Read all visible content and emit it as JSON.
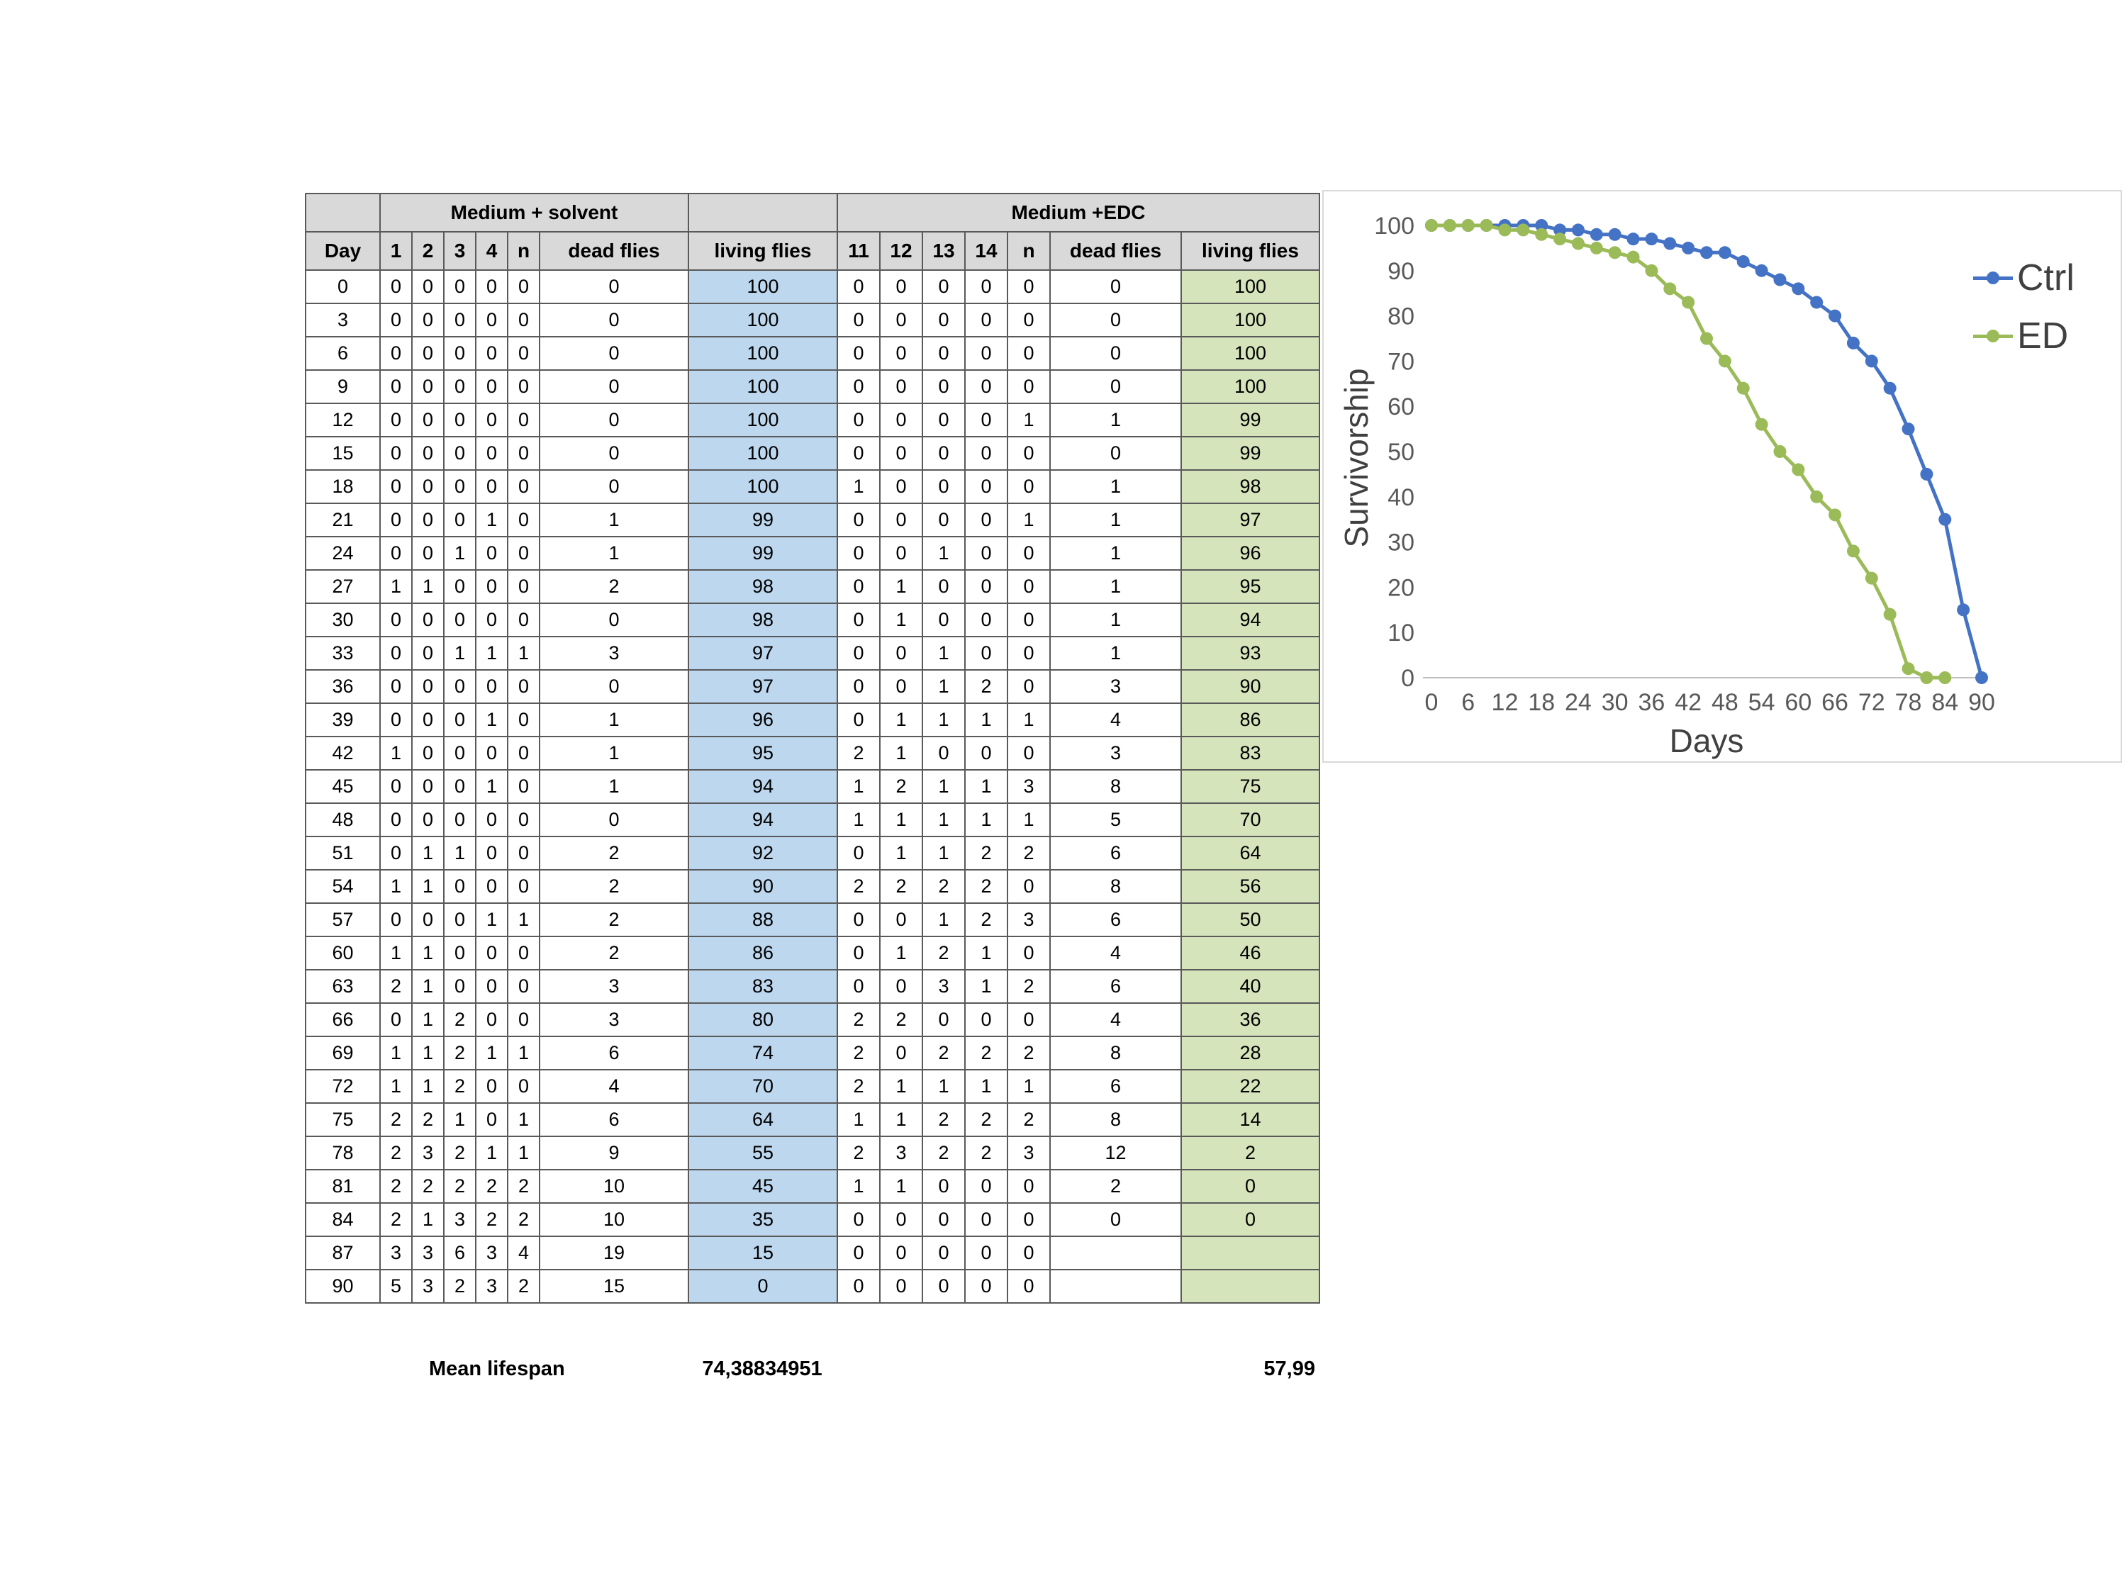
{
  "table": {
    "group_headers": [
      {
        "label": "",
        "span": 1
      },
      {
        "label": "Medium + solvent",
        "span": 6
      },
      {
        "label": "",
        "span": 1
      },
      {
        "label": "Medium +EDC",
        "span": 7
      }
    ],
    "columns": [
      "Day",
      "1",
      "2",
      "3",
      "4",
      "n",
      "dead flies",
      "living flies",
      "11",
      "12",
      "13",
      "14",
      "n",
      "dead flies",
      "living flies"
    ],
    "rows": [
      [
        "0",
        "0",
        "0",
        "0",
        "0",
        "0",
        "0",
        "100",
        "0",
        "0",
        "0",
        "0",
        "0",
        "0",
        "100"
      ],
      [
        "3",
        "0",
        "0",
        "0",
        "0",
        "0",
        "0",
        "100",
        "0",
        "0",
        "0",
        "0",
        "0",
        "0",
        "100"
      ],
      [
        "6",
        "0",
        "0",
        "0",
        "0",
        "0",
        "0",
        "100",
        "0",
        "0",
        "0",
        "0",
        "0",
        "0",
        "100"
      ],
      [
        "9",
        "0",
        "0",
        "0",
        "0",
        "0",
        "0",
        "100",
        "0",
        "0",
        "0",
        "0",
        "0",
        "0",
        "100"
      ],
      [
        "12",
        "0",
        "0",
        "0",
        "0",
        "0",
        "0",
        "100",
        "0",
        "0",
        "0",
        "0",
        "1",
        "1",
        "99"
      ],
      [
        "15",
        "0",
        "0",
        "0",
        "0",
        "0",
        "0",
        "100",
        "0",
        "0",
        "0",
        "0",
        "0",
        "0",
        "99"
      ],
      [
        "18",
        "0",
        "0",
        "0",
        "0",
        "0",
        "0",
        "100",
        "1",
        "0",
        "0",
        "0",
        "0",
        "1",
        "98"
      ],
      [
        "21",
        "0",
        "0",
        "0",
        "1",
        "0",
        "1",
        "99",
        "0",
        "0",
        "0",
        "0",
        "1",
        "1",
        "97"
      ],
      [
        "24",
        "0",
        "0",
        "1",
        "0",
        "0",
        "1",
        "99",
        "0",
        "0",
        "1",
        "0",
        "0",
        "1",
        "96"
      ],
      [
        "27",
        "1",
        "1",
        "0",
        "0",
        "0",
        "2",
        "98",
        "0",
        "1",
        "0",
        "0",
        "0",
        "1",
        "95"
      ],
      [
        "30",
        "0",
        "0",
        "0",
        "0",
        "0",
        "0",
        "98",
        "0",
        "1",
        "0",
        "0",
        "0",
        "1",
        "94"
      ],
      [
        "33",
        "0",
        "0",
        "1",
        "1",
        "1",
        "3",
        "97",
        "0",
        "0",
        "1",
        "0",
        "0",
        "1",
        "93"
      ],
      [
        "36",
        "0",
        "0",
        "0",
        "0",
        "0",
        "0",
        "97",
        "0",
        "0",
        "1",
        "2",
        "0",
        "3",
        "90"
      ],
      [
        "39",
        "0",
        "0",
        "0",
        "1",
        "0",
        "1",
        "96",
        "0",
        "1",
        "1",
        "1",
        "1",
        "4",
        "86"
      ],
      [
        "42",
        "1",
        "0",
        "0",
        "0",
        "0",
        "1",
        "95",
        "2",
        "1",
        "0",
        "0",
        "0",
        "3",
        "83"
      ],
      [
        "45",
        "0",
        "0",
        "0",
        "1",
        "0",
        "1",
        "94",
        "1",
        "2",
        "1",
        "1",
        "3",
        "8",
        "75"
      ],
      [
        "48",
        "0",
        "0",
        "0",
        "0",
        "0",
        "0",
        "94",
        "1",
        "1",
        "1",
        "1",
        "1",
        "5",
        "70"
      ],
      [
        "51",
        "0",
        "1",
        "1",
        "0",
        "0",
        "2",
        "92",
        "0",
        "1",
        "1",
        "2",
        "2",
        "6",
        "64"
      ],
      [
        "54",
        "1",
        "1",
        "0",
        "0",
        "0",
        "2",
        "90",
        "2",
        "2",
        "2",
        "2",
        "0",
        "8",
        "56"
      ],
      [
        "57",
        "0",
        "0",
        "0",
        "1",
        "1",
        "2",
        "88",
        "0",
        "0",
        "1",
        "2",
        "3",
        "6",
        "50"
      ],
      [
        "60",
        "1",
        "1",
        "0",
        "0",
        "0",
        "2",
        "86",
        "0",
        "1",
        "2",
        "1",
        "0",
        "4",
        "46"
      ],
      [
        "63",
        "2",
        "1",
        "0",
        "0",
        "0",
        "3",
        "83",
        "0",
        "0",
        "3",
        "1",
        "2",
        "6",
        "40"
      ],
      [
        "66",
        "0",
        "1",
        "2",
        "0",
        "0",
        "3",
        "80",
        "2",
        "2",
        "0",
        "0",
        "0",
        "4",
        "36"
      ],
      [
        "69",
        "1",
        "1",
        "2",
        "1",
        "1",
        "6",
        "74",
        "2",
        "0",
        "2",
        "2",
        "2",
        "8",
        "28"
      ],
      [
        "72",
        "1",
        "1",
        "2",
        "0",
        "0",
        "4",
        "70",
        "2",
        "1",
        "1",
        "1",
        "1",
        "6",
        "22"
      ],
      [
        "75",
        "2",
        "2",
        "1",
        "0",
        "1",
        "6",
        "64",
        "1",
        "1",
        "2",
        "2",
        "2",
        "8",
        "14"
      ],
      [
        "78",
        "2",
        "3",
        "2",
        "1",
        "1",
        "9",
        "55",
        "2",
        "3",
        "2",
        "2",
        "3",
        "12",
        "2"
      ],
      [
        "81",
        "2",
        "2",
        "2",
        "2",
        "2",
        "10",
        "45",
        "1",
        "1",
        "0",
        "0",
        "0",
        "2",
        "0"
      ],
      [
        "84",
        "2",
        "1",
        "3",
        "2",
        "2",
        "10",
        "35",
        "0",
        "0",
        "0",
        "0",
        "0",
        "0",
        "0"
      ],
      [
        "87",
        "3",
        "3",
        "6",
        "3",
        "4",
        "19",
        "15",
        "0",
        "0",
        "0",
        "0",
        "0",
        "",
        ""
      ],
      [
        "90",
        "5",
        "3",
        "2",
        "3",
        "2",
        "15",
        "0",
        "0",
        "0",
        "0",
        "0",
        "0",
        "",
        ""
      ]
    ],
    "footer": {
      "label": "Mean lifespan",
      "mean_solvent": "74,38834951",
      "mean_edc": "57,99"
    },
    "colors": {
      "header_bg": "#D9D9D9",
      "living_solvent_bg": "#BDD7EE",
      "living_edc_bg": "#D6E4BC",
      "border": "#595959"
    }
  },
  "chart_data": {
    "type": "line",
    "title": "",
    "xlabel": "Days",
    "ylabel": "Survivorship",
    "x": [
      0,
      3,
      6,
      9,
      12,
      15,
      18,
      21,
      24,
      27,
      30,
      33,
      36,
      39,
      42,
      45,
      48,
      51,
      54,
      57,
      60,
      63,
      66,
      69,
      72,
      75,
      78,
      81,
      84,
      87,
      90
    ],
    "series": [
      {
        "name": "Ctrl",
        "color": "#4472C4",
        "values": [
          100,
          100,
          100,
          100,
          100,
          100,
          100,
          99,
          99,
          98,
          98,
          97,
          97,
          96,
          95,
          94,
          94,
          92,
          90,
          88,
          86,
          83,
          80,
          74,
          70,
          64,
          55,
          45,
          35,
          15,
          0
        ]
      },
      {
        "name": "ED",
        "color": "#9BBB59",
        "values": [
          100,
          100,
          100,
          100,
          99,
          99,
          98,
          97,
          96,
          95,
          94,
          93,
          90,
          86,
          83,
          75,
          70,
          64,
          56,
          50,
          46,
          40,
          36,
          28,
          22,
          14,
          2,
          0,
          0
        ]
      }
    ],
    "xlim": [
      0,
      90
    ],
    "ylim": [
      0,
      100
    ],
    "x_ticks": [
      0,
      6,
      12,
      18,
      24,
      30,
      36,
      42,
      48,
      54,
      60,
      66,
      72,
      78,
      84,
      90
    ],
    "y_ticks": [
      0,
      10,
      20,
      30,
      40,
      50,
      60,
      70,
      80,
      90,
      100
    ],
    "grid": false,
    "legend_position": "right"
  }
}
